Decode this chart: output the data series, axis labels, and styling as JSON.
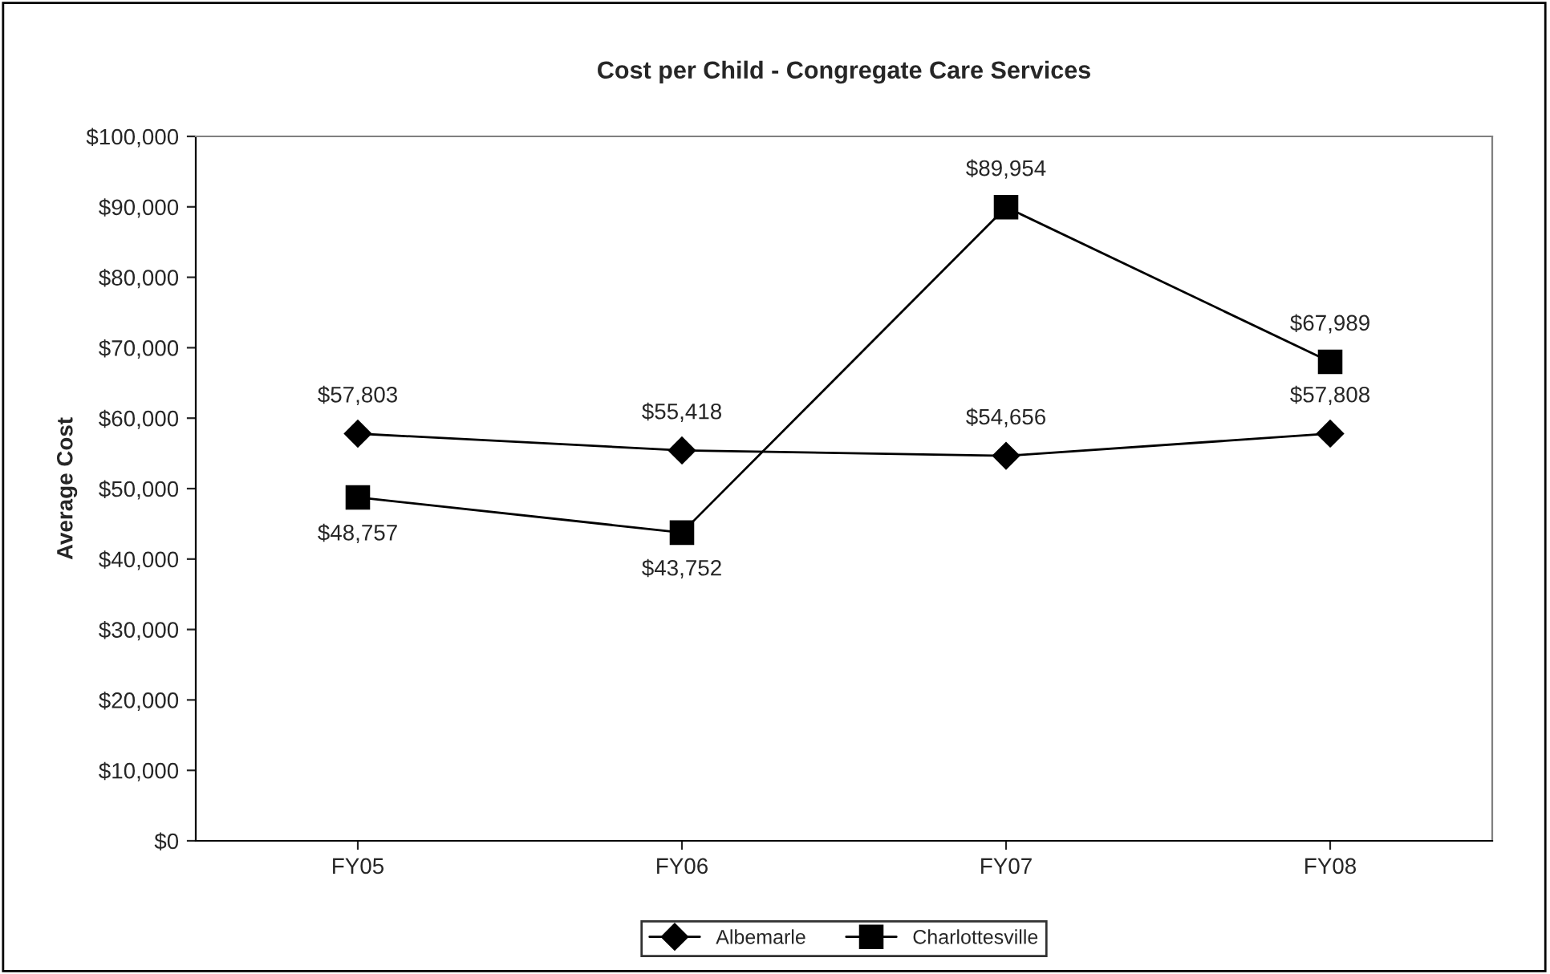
{
  "chart_data": {
    "type": "line",
    "title": "Cost per Child - Congregate Care Services",
    "ylabel": "Average Cost",
    "categories": [
      "FY05",
      "FY06",
      "FY07",
      "FY08"
    ],
    "series": [
      {
        "name": "Albemarle",
        "color": "#000000",
        "marker": "diamond",
        "values": [
          57803,
          55418,
          54656,
          57808
        ],
        "value_labels": [
          "$57,803",
          "$55,418",
          "$54,656",
          "$57,808"
        ]
      },
      {
        "name": "Charlottesville",
        "color": "#000000",
        "marker": "square",
        "values": [
          48757,
          43752,
          89954,
          67989
        ],
        "value_labels": [
          "$48,757",
          "$43,752",
          "$89,954",
          "$67,989"
        ]
      }
    ],
    "ylim": [
      0,
      100000
    ],
    "yticks": [
      {
        "value": 0,
        "label": "$0"
      },
      {
        "value": 10000,
        "label": "$10,000"
      },
      {
        "value": 20000,
        "label": "$20,000"
      },
      {
        "value": 30000,
        "label": "$30,000"
      },
      {
        "value": 40000,
        "label": "$40,000"
      },
      {
        "value": 50000,
        "label": "$50,000"
      },
      {
        "value": 60000,
        "label": "$60,000"
      },
      {
        "value": 70000,
        "label": "$70,000"
      },
      {
        "value": 80000,
        "label": "$80,000"
      },
      {
        "value": 90000,
        "label": "$90,000"
      },
      {
        "value": 100000,
        "label": "$100,000"
      }
    ],
    "grid": false,
    "legend": "bottom",
    "line_style": "solid"
  }
}
